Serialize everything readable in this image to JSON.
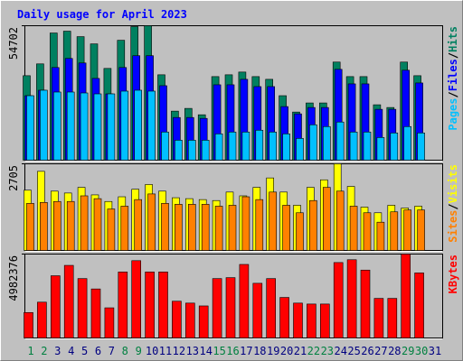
{
  "chart_data": [
    {
      "type": "bar",
      "title": "Daily usage for April 2023",
      "categories": [
        "1",
        "2",
        "3",
        "4",
        "5",
        "6",
        "7",
        "8",
        "9",
        "10",
        "11",
        "12",
        "13",
        "14",
        "15",
        "16",
        "17",
        "18",
        "19",
        "20",
        "21",
        "22",
        "23",
        "24",
        "25",
        "26",
        "27",
        "28",
        "29",
        "30",
        "31"
      ],
      "category_colors": [
        "#008040",
        "#008040",
        "#000080",
        "#000080",
        "#000080",
        "#000080",
        "#000080",
        "#008040",
        "#008040",
        "#000080",
        "#000080",
        "#000080",
        "#000080",
        "#000080",
        "#008040",
        "#008040",
        "#000080",
        "#000080",
        "#000080",
        "#000080",
        "#000080",
        "#008040",
        "#008040",
        "#000080",
        "#000080",
        "#000080",
        "#000080",
        "#000080",
        "#008040",
        "#008040",
        "#000080"
      ],
      "legend_separator": "/",
      "ylim": [
        0,
        54702
      ],
      "yticks": [
        54702
      ],
      "series": [
        {
          "name": "Hits",
          "color": "#008060",
          "values": [
            34373,
            39178,
            51745,
            52484,
            50266,
            47309,
            37330,
            48788,
            54332,
            54702,
            34743,
            19958,
            21067,
            18480,
            34004,
            34743,
            35852,
            34004,
            32895,
            26242,
            19589,
            23285,
            23285,
            39917,
            34004,
            34004,
            22546,
            21437,
            39917,
            34373,
            null
          ]
        },
        {
          "name": "Files",
          "color": "#0000ff",
          "values": [
            26242,
            28459,
            37699,
            41395,
            39548,
            33264,
            26981,
            37699,
            42504,
            42504,
            30307,
            17371,
            17371,
            17002,
            30677,
            30677,
            32894,
            29938,
            29938,
            21806,
            18850,
            21437,
            21437,
            36960,
            31046,
            31046,
            20698,
            20698,
            36590,
            31416,
            null
          ]
        },
        {
          "name": "Pages",
          "color": "#00c0ff",
          "values": [
            26242,
            28459,
            27720,
            27720,
            27350,
            26981,
            26981,
            28090,
            28459,
            28090,
            11458,
            8131,
            8131,
            8131,
            10718,
            11458,
            11458,
            12197,
            11458,
            10718,
            8870,
            14414,
            13675,
            15523,
            11458,
            11458,
            9240,
            11088,
            13675,
            11088,
            null
          ]
        }
      ]
    },
    {
      "type": "bar",
      "ylim": [
        0,
        2705
      ],
      "yticks": [
        2705
      ],
      "series": [
        {
          "name": "Visits",
          "color": "#ffff00",
          "values": [
            1882,
            2470,
            1852,
            1793,
            1970,
            1735,
            1529,
            1676,
            1911,
            2058,
            1852,
            1646,
            1617,
            1588,
            1558,
            1823,
            1705,
            1970,
            2264,
            1823,
            1411,
            1970,
            2205,
            2705,
            1999,
            1352,
            1176,
            1411,
            1323,
            1382,
            null
          ]
        },
        {
          "name": "Sites",
          "color": "#ff8000",
          "values": [
            1470,
            1499,
            1529,
            1529,
            1705,
            1617,
            1294,
            1382,
            1588,
            1764,
            1470,
            1441,
            1441,
            1441,
            1382,
            1411,
            1676,
            1588,
            1823,
            1411,
            1176,
            1558,
            1970,
            1852,
            1382,
            1176,
            882,
            1205,
            1264,
            1264,
            null
          ]
        }
      ]
    },
    {
      "type": "bar",
      "ylim": [
        0,
        4982376
      ],
      "yticks": [
        4982376
      ],
      "series": [
        {
          "name": "KBytes",
          "color": "#ff0000",
          "values": [
            1511538,
            2127350,
            3694873,
            4310685,
            3526922,
            2911111,
            1791453,
            3918803,
            4590598,
            3918803,
            3918803,
            2183333,
            2071368,
            1903419,
            3526922,
            3582906,
            4366667,
            3247009,
            3526922,
            2407265,
            2071368,
            2015385,
            2015385,
            4478632,
            4646581,
            4030769,
            2351282,
            2351282,
            4982376,
            3862821,
            null
          ]
        }
      ]
    }
  ]
}
